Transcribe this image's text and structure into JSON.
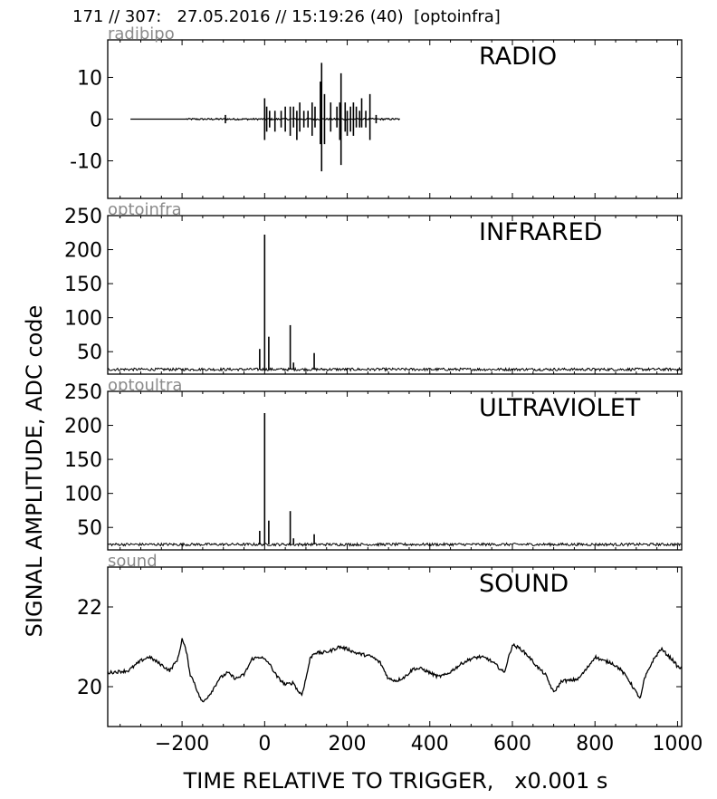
{
  "header": "171 // 307:   27.05.2016 // 15:19:26 (40)  [optoinfra]",
  "ylabel": "SIGNAL AMPLITUDE,  ADC code",
  "xlabel": "TIME RELATIVE TO TRIGGER,   x0.001 s",
  "chart_data": [
    {
      "type": "line",
      "title": "RADIO",
      "sensor": "radibipo",
      "xlim": [
        -380,
        1010
      ],
      "ylim": [
        -19,
        19
      ],
      "yticks": [
        -10,
        0,
        10
      ],
      "xticks": [
        -200,
        0,
        200,
        400,
        600,
        800,
        1000
      ],
      "baseline": 0,
      "signal_range": [
        -325,
        328
      ],
      "spikes": [
        {
          "x": -95,
          "v": 1,
          "min": -1
        },
        {
          "x": 0,
          "v": 5,
          "min": -5
        },
        {
          "x": 5,
          "v": 3,
          "min": -3
        },
        {
          "x": 12,
          "v": 2,
          "min": -2
        },
        {
          "x": 25,
          "v": 2,
          "min": -3
        },
        {
          "x": 40,
          "v": 2,
          "min": -2
        },
        {
          "x": 50,
          "v": 3,
          "min": -3
        },
        {
          "x": 62,
          "v": 3,
          "min": -4
        },
        {
          "x": 70,
          "v": 3,
          "min": -2
        },
        {
          "x": 78,
          "v": 2,
          "min": -5
        },
        {
          "x": 85,
          "v": 4,
          "min": -3
        },
        {
          "x": 95,
          "v": 2,
          "min": -2
        },
        {
          "x": 105,
          "v": 2,
          "min": -2
        },
        {
          "x": 115,
          "v": 4,
          "min": -4
        },
        {
          "x": 122,
          "v": 3,
          "min": -2
        },
        {
          "x": 135,
          "v": 9,
          "min": -6
        },
        {
          "x": 138,
          "v": 13.5,
          "min": -12.5
        },
        {
          "x": 145,
          "v": 6,
          "min": -6
        },
        {
          "x": 160,
          "v": 4,
          "min": -3
        },
        {
          "x": 175,
          "v": 3,
          "min": -2
        },
        {
          "x": 182,
          "v": 4,
          "min": -5
        },
        {
          "x": 185,
          "v": 11,
          "min": -11
        },
        {
          "x": 195,
          "v": 4,
          "min": -3
        },
        {
          "x": 200,
          "v": 2,
          "min": -4
        },
        {
          "x": 208,
          "v": 3,
          "min": -3
        },
        {
          "x": 215,
          "v": 4,
          "min": -4
        },
        {
          "x": 222,
          "v": 3,
          "min": -2
        },
        {
          "x": 230,
          "v": 2,
          "min": -2
        },
        {
          "x": 235,
          "v": 5,
          "min": -2
        },
        {
          "x": 245,
          "v": 2,
          "min": -2
        },
        {
          "x": 255,
          "v": 6,
          "min": -5
        },
        {
          "x": 270,
          "v": 1,
          "min": -1
        }
      ]
    },
    {
      "type": "line",
      "title": "INFRARED",
      "sensor": "optoinfra",
      "xlim": [
        -380,
        1010
      ],
      "ylim": [
        17,
        250
      ],
      "yticks": [
        50,
        100,
        150,
        200,
        250
      ],
      "xticks": [
        -200,
        0,
        200,
        400,
        600,
        800,
        1000
      ],
      "baseline": 24,
      "spikes": [
        {
          "x": -12,
          "v": 54
        },
        {
          "x": 0,
          "v": 222
        },
        {
          "x": 10,
          "v": 72
        },
        {
          "x": 62,
          "v": 89
        },
        {
          "x": 70,
          "v": 34
        },
        {
          "x": 120,
          "v": 48
        }
      ]
    },
    {
      "type": "line",
      "title": "ULTRAVIOLET",
      "sensor": "optoultra",
      "xlim": [
        -380,
        1010
      ],
      "ylim": [
        17,
        250
      ],
      "yticks": [
        50,
        100,
        150,
        200,
        250
      ],
      "xticks": [
        -200,
        0,
        200,
        400,
        600,
        800,
        1000
      ],
      "baseline": 25,
      "spikes": [
        {
          "x": -12,
          "v": 45
        },
        {
          "x": 0,
          "v": 218
        },
        {
          "x": 10,
          "v": 60
        },
        {
          "x": 62,
          "v": 74
        },
        {
          "x": 70,
          "v": 34
        },
        {
          "x": 120,
          "v": 40
        }
      ]
    },
    {
      "type": "line",
      "title": "SOUND",
      "sensor": "sound",
      "xlim": [
        -380,
        1010
      ],
      "ylim": [
        19,
        23
      ],
      "yticks": [
        20,
        22
      ],
      "xticks": [
        -200,
        0,
        200,
        400,
        600,
        800,
        1000
      ],
      "x": [
        -380,
        -330,
        -300,
        -280,
        -250,
        -230,
        -210,
        -200,
        -190,
        -180,
        -170,
        -160,
        -150,
        -130,
        -110,
        -90,
        -70,
        -50,
        -30,
        -10,
        10,
        30,
        50,
        70,
        80,
        90,
        100,
        110,
        120,
        140,
        160,
        180,
        200,
        220,
        240,
        260,
        280,
        300,
        320,
        340,
        360,
        380,
        400,
        420,
        440,
        460,
        480,
        500,
        520,
        540,
        560,
        580,
        600,
        620,
        640,
        660,
        680,
        700,
        720,
        740,
        760,
        780,
        800,
        820,
        840,
        860,
        880,
        900,
        910,
        920,
        940,
        960,
        980,
        990,
        1000,
        1010
      ],
      "y": [
        20.35,
        20.4,
        20.65,
        20.75,
        20.55,
        20.4,
        20.7,
        21.2,
        20.9,
        20.3,
        20.1,
        19.8,
        19.6,
        19.85,
        20.2,
        20.35,
        20.2,
        20.3,
        20.7,
        20.75,
        20.6,
        20.25,
        20.05,
        20.1,
        19.9,
        19.8,
        20.2,
        20.7,
        20.85,
        20.85,
        20.9,
        21.0,
        20.95,
        20.85,
        20.8,
        20.75,
        20.6,
        20.2,
        20.15,
        20.25,
        20.45,
        20.45,
        20.35,
        20.25,
        20.3,
        20.45,
        20.6,
        20.7,
        20.75,
        20.7,
        20.55,
        20.35,
        21.05,
        20.95,
        20.75,
        20.5,
        20.3,
        19.85,
        20.15,
        20.15,
        20.2,
        20.45,
        20.75,
        20.65,
        20.6,
        20.45,
        20.2,
        19.85,
        19.7,
        20.2,
        20.65,
        20.95,
        20.75,
        20.65,
        20.5,
        20.45
      ]
    }
  ]
}
